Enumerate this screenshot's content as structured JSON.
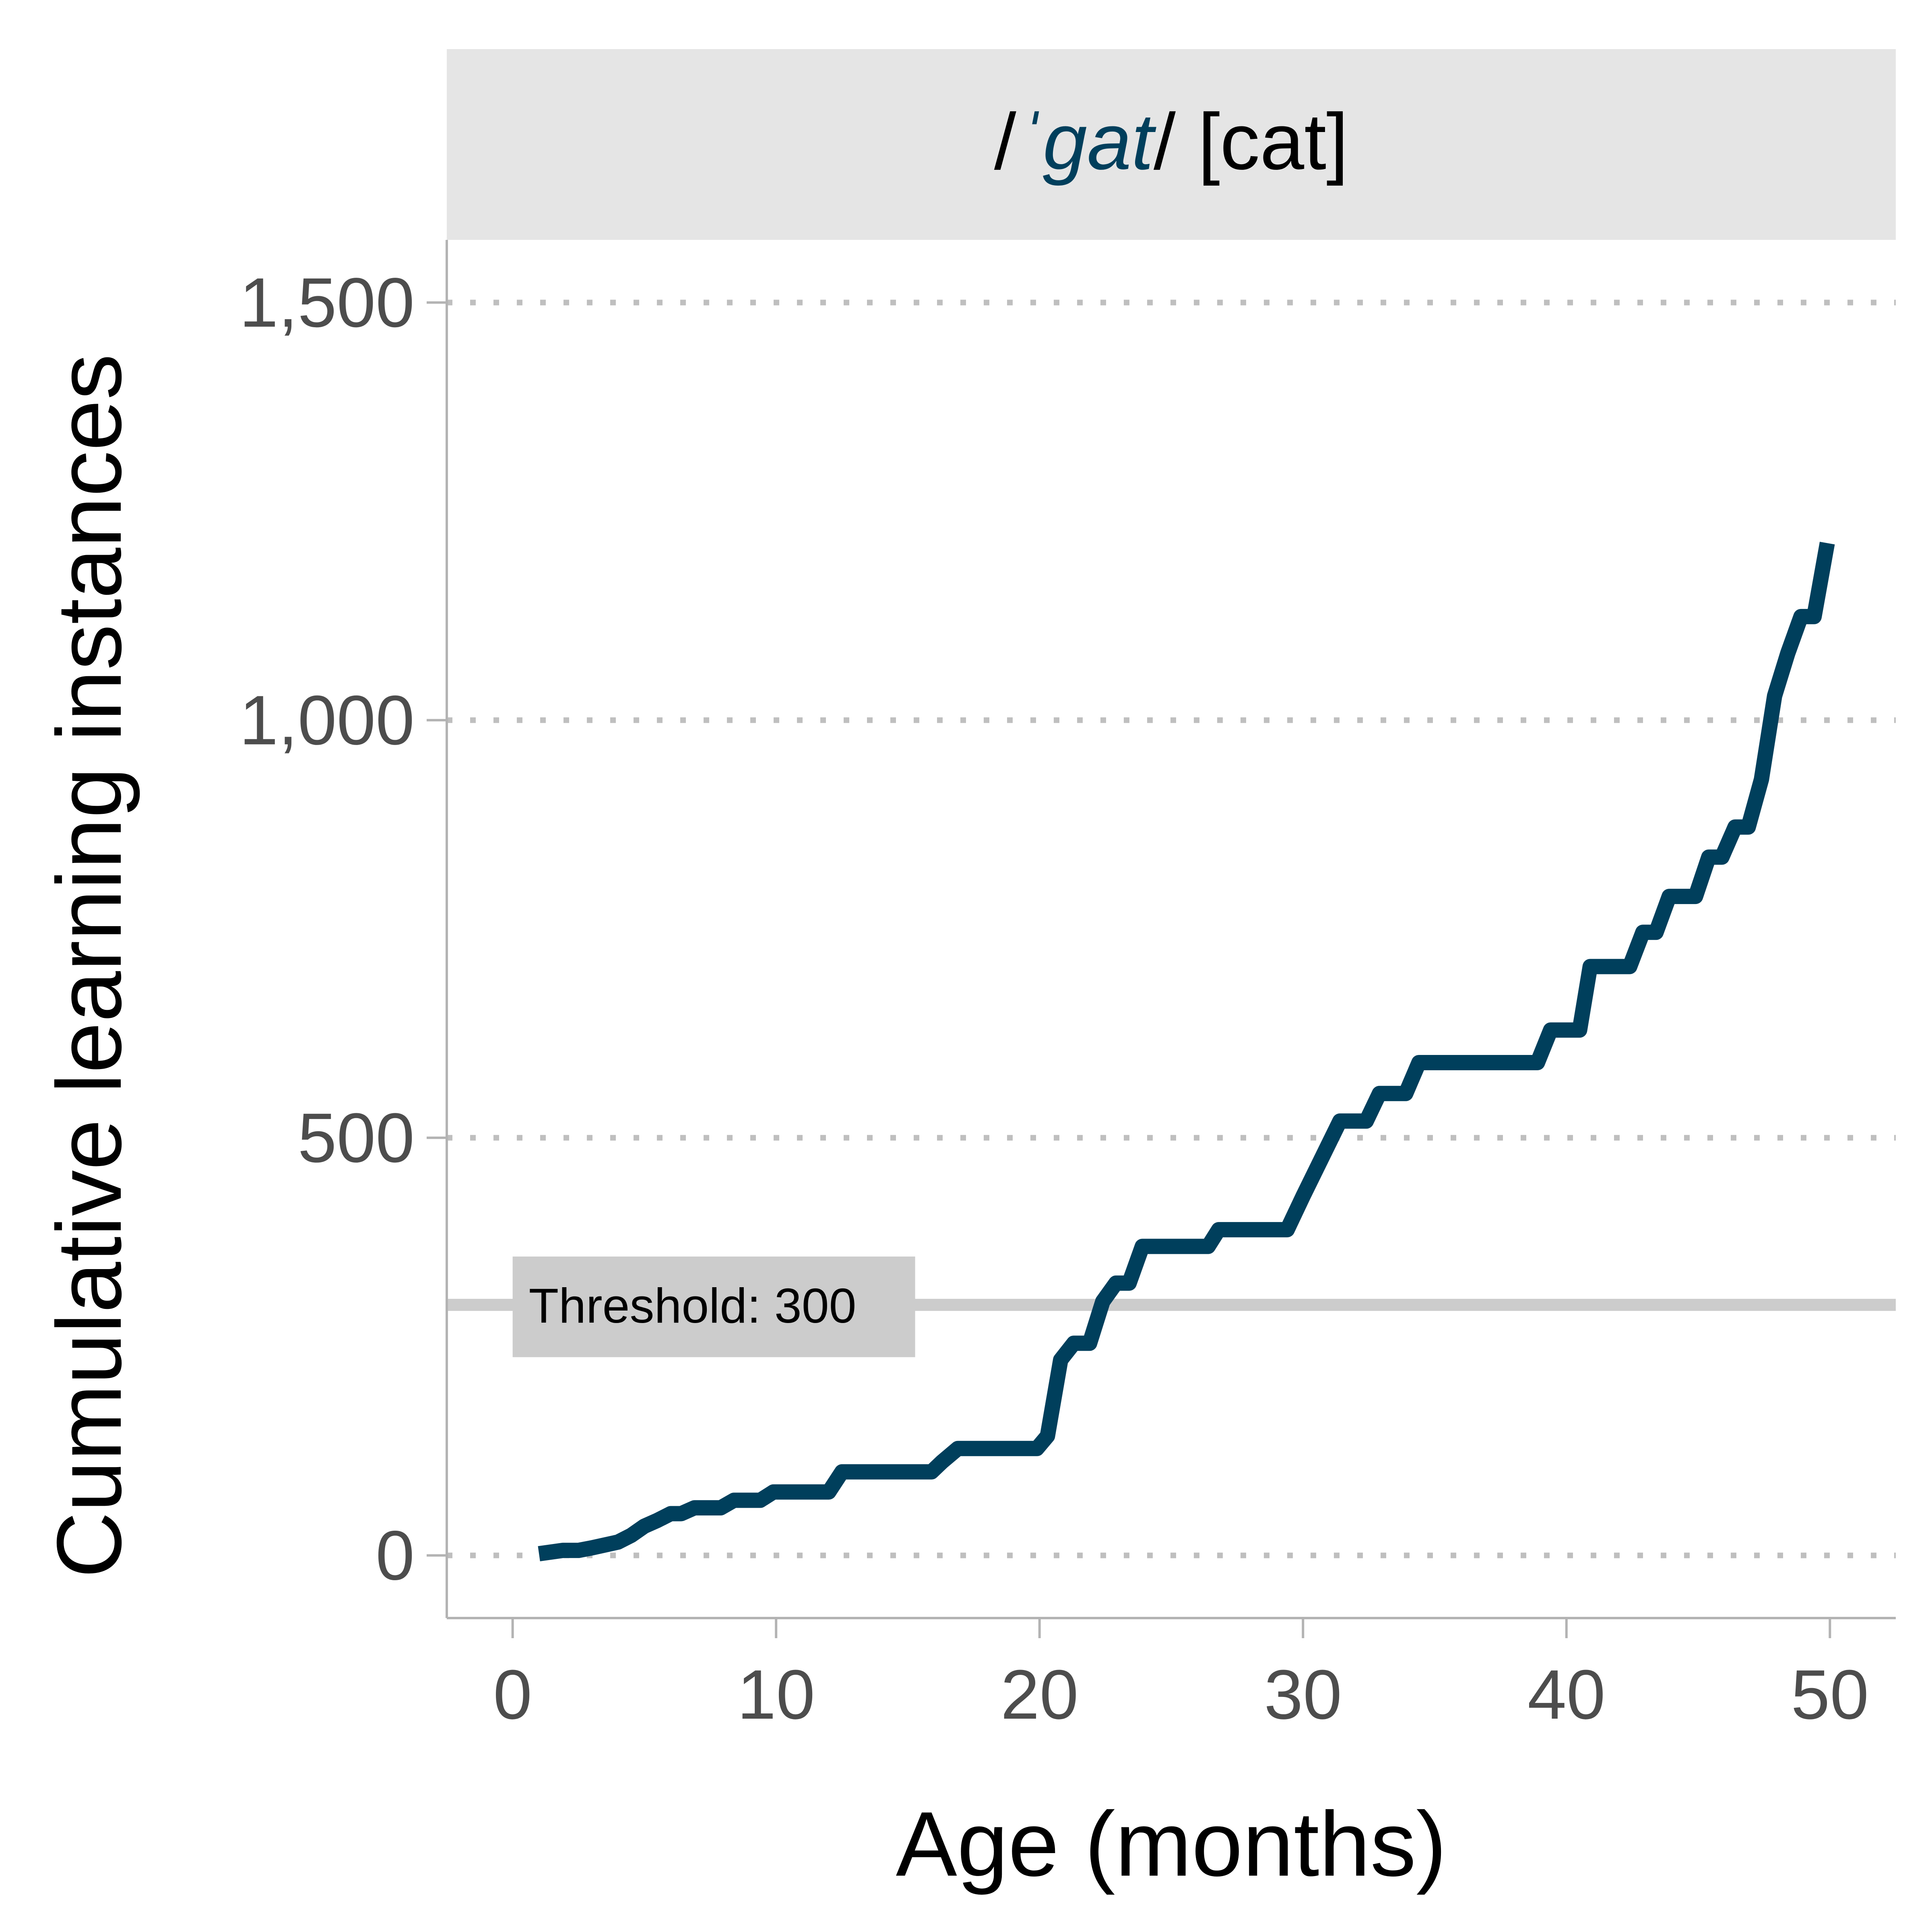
{
  "chart_data": {
    "type": "line",
    "panel_title": {
      "prefix": "/",
      "stress_mark": "ˈ",
      "word": "gat",
      "suffix": "/ [cat]"
    },
    "xlabel": "Age (months)",
    "ylabel": "Cumulative learning instances",
    "xlim": [
      -2.5,
      52.5
    ],
    "ylim": [
      -75,
      1575
    ],
    "x_ticks": [
      0,
      10,
      20,
      30,
      40,
      50
    ],
    "x_tick_labels": [
      "0",
      "10",
      "20",
      "30",
      "40",
      "50"
    ],
    "y_ticks": [
      0,
      500,
      1000,
      1500
    ],
    "y_tick_labels": [
      "0",
      "500",
      "1,000",
      "1,500"
    ],
    "grid": "horizontal dotted",
    "threshold": {
      "value": 300,
      "label": "Threshold: 300"
    },
    "series": [
      {
        "color": "#003f5c",
        "x": [
          1,
          1.9,
          2.5,
          3,
          4,
          4.5,
          5,
          5.5,
          6,
          6.4,
          6.9,
          7.9,
          8.4,
          9.4,
          9.9,
          10.9,
          11.4,
          12,
          12.5,
          13,
          14,
          15,
          15.9,
          16.3,
          16.9,
          18,
          19,
          19.9,
          20.3,
          20.8,
          21.3,
          21.9,
          22.4,
          22.9,
          23.4,
          23.9,
          24.5,
          26,
          26.4,
          26.8,
          27.9,
          29,
          29.4,
          30,
          31.4,
          32,
          32.4,
          32.9,
          33.4,
          33.9,
          34.4,
          35,
          36.5,
          38.5,
          38.9,
          39.4,
          39.9,
          40.5,
          40.9,
          41.5,
          42.4,
          42.9,
          43.4,
          43.9,
          44.4,
          44.9,
          45.4,
          45.9,
          46.4,
          46.9,
          47.4,
          47.9,
          48.4,
          48.9,
          49.4,
          49.9
        ],
        "y": [
          2,
          6,
          6,
          9,
          16,
          24,
          35,
          42,
          50,
          50,
          57,
          57,
          66,
          66,
          76,
          76,
          76,
          76,
          100,
          100,
          100,
          100,
          100,
          112,
          128,
          128,
          128,
          128,
          143,
          234,
          254,
          254,
          304,
          326,
          326,
          370,
          370,
          370,
          370,
          390,
          390,
          390,
          390,
          430,
          520,
          520,
          520,
          553,
          553,
          553,
          590,
          590,
          590,
          590,
          590,
          629,
          629,
          629,
          705,
          705,
          705,
          746,
          746,
          789,
          789,
          789,
          836,
          836,
          872,
          872,
          929,
          1029,
          1080,
          1124,
          1124,
          1212
        ]
      }
    ]
  }
}
